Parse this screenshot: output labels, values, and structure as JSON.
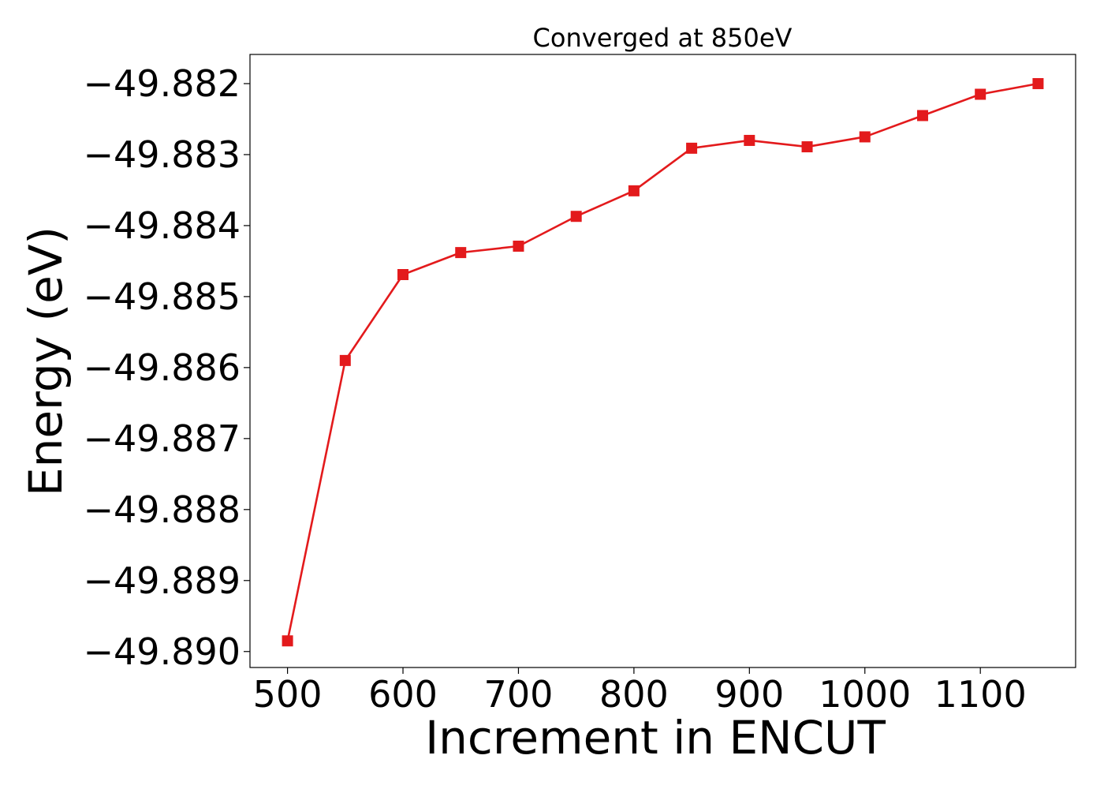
{
  "chart_data": {
    "type": "line",
    "title": "Converged at 850eV",
    "xlabel": "Increment in ENCUT",
    "ylabel": "Energy (eV)",
    "x": [
      500,
      550,
      600,
      650,
      700,
      750,
      800,
      850,
      900,
      950,
      1000,
      1050,
      1100,
      1150
    ],
    "series": [
      {
        "values": [
          -49.88985,
          -49.8859,
          -49.88469,
          -49.88438,
          -49.88429,
          -49.88387,
          -49.88351,
          -49.88291,
          -49.8828,
          -49.88289,
          -49.88275,
          -49.88245,
          -49.88215,
          -49.882
        ],
        "color": "#e31a1c",
        "marker": "square"
      }
    ],
    "xlim": [
      467.5,
      1182.5
    ],
    "ylim": [
      -49.890225,
      -49.881589
    ],
    "xticks": [
      500,
      600,
      700,
      800,
      900,
      1000,
      1100
    ],
    "xtick_labels": [
      "500",
      "600",
      "700",
      "800",
      "900",
      "1000",
      "1100"
    ],
    "yticks": [
      -49.89,
      -49.889,
      -49.888,
      -49.887,
      -49.886,
      -49.885,
      -49.884,
      -49.883,
      -49.882
    ],
    "ytick_labels": [
      "−49.890",
      "−49.889",
      "−49.888",
      "−49.887",
      "−49.886",
      "−49.885",
      "−49.884",
      "−49.883",
      "−49.882"
    ],
    "grid": false,
    "legend": "none"
  }
}
